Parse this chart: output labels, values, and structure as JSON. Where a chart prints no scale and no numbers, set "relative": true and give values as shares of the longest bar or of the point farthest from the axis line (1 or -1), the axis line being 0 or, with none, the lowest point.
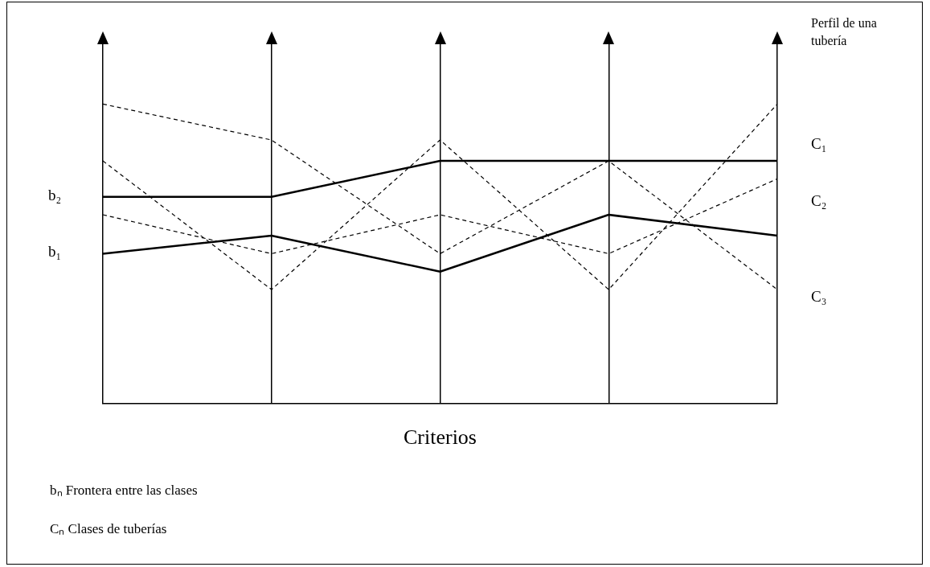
{
  "chart_data": {
    "type": "line",
    "relative": true,
    "categories": [
      null,
      null,
      null,
      null,
      null
    ],
    "xlabel": "Criterios",
    "grid": "x",
    "marker": "none",
    "series": [
      {
        "name": "b₂",
        "color": "#000000",
        "line_style": "solid",
        "values": [
          0.69,
          0.69,
          0.81,
          0.81,
          0.81
        ]
      },
      {
        "name": "b₁",
        "color": "#000000",
        "line_style": "solid",
        "values": [
          0.5,
          0.56,
          0.44,
          0.63,
          0.56
        ]
      },
      {
        "color": "#000000",
        "line_style": "dashed",
        "values": [
          1,
          0.88,
          0.5,
          0.81,
          0.38
        ]
      },
      {
        "color": "#000000",
        "line_style": "dashed",
        "values": [
          0.81,
          0.38,
          0.88,
          0.38,
          1
        ]
      },
      {
        "color": "#000000",
        "line_style": "dashed",
        "values": [
          0.63,
          0.5,
          0.63,
          0.5,
          0.75
        ]
      }
    ],
    "annotations": [
      "Perfil de una tubería",
      "C₁",
      "C₂",
      "C₃",
      "bₙ  Frontera entre las clases",
      "Cₙ Clases de tuberías"
    ]
  }
}
